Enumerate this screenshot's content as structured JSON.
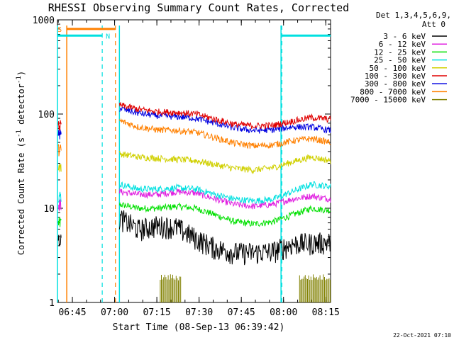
{
  "chart_data": {
    "type": "line",
    "title": "RHESSI Observing Summary Count Rates, Corrected",
    "xlabel": "Start Time (08-Sep-13 06:39:42)",
    "ylabel_main": "Corrected Count Rate (s",
    "ylabel_sup1": "-1",
    "ylabel_mid": " detector",
    "ylabel_sup2": "-1",
    "ylabel_end": ")",
    "timestamp": "22-Oct-2021 07:10",
    "y_scale": "log",
    "ylim": [
      1,
      1000
    ],
    "xlim_minutes": [
      0,
      97
    ],
    "x_ticks": [
      {
        "label": "06:45",
        "minutes": 5.3
      },
      {
        "label": "07:00",
        "minutes": 20.3
      },
      {
        "label": "07:15",
        "minutes": 35.3
      },
      {
        "label": "07:30",
        "minutes": 50.3
      },
      {
        "label": "07:45",
        "minutes": 65.3
      },
      {
        "label": "08:00",
        "minutes": 80.3
      },
      {
        "label": "08:15",
        "minutes": 95.3
      }
    ],
    "y_ticks": [
      {
        "label": "1",
        "value": 1
      },
      {
        "label": "10",
        "value": 10
      },
      {
        "label": "100",
        "value": 100
      },
      {
        "label": "1000",
        "value": 1000
      }
    ],
    "legend_header": [
      "Det 1,3,4,5,6,9,",
      "Att 0"
    ],
    "legend_position": "right",
    "flag_labels": {
      "saa": "S",
      "night": "N"
    },
    "series": [
      {
        "name": "3 - 6 keV",
        "color": "#000000",
        "values_first": 4.6,
        "values_main": [
          8.0,
          6.0,
          6.6,
          6.3,
          4.8,
          3.8,
          3.4,
          3.4,
          3.5,
          4.2,
          4.3,
          4.4
        ]
      },
      {
        "name": "6 - 12 keV",
        "color": "#e020e0",
        "values_first": 11.0,
        "values_main": [
          15.0,
          14.0,
          14.0,
          15.0,
          14.5,
          12.5,
          11.0,
          10.5,
          11.0,
          12.5,
          13.5,
          12.5
        ]
      },
      {
        "name": "12 - 25 keV",
        "color": "#00e000",
        "values_first": 7.0,
        "values_main": [
          11.0,
          10.0,
          10.0,
          10.5,
          10.0,
          8.5,
          7.2,
          6.8,
          7.2,
          8.5,
          10.0,
          9.5
        ]
      },
      {
        "name": "25 - 50 keV",
        "color": "#00e0e0",
        "values_first": 13.5,
        "values_main": [
          18.0,
          16.0,
          16.0,
          16.5,
          16.0,
          14.0,
          12.5,
          12.0,
          12.5,
          15.0,
          18.0,
          17.0
        ]
      },
      {
        "name": "50 - 100 keV",
        "color": "#d0d000",
        "values_first": 28.0,
        "values_main": [
          38.0,
          35.0,
          34.0,
          33.0,
          32.0,
          29.0,
          26.5,
          25.5,
          27.0,
          31.0,
          35.0,
          32.0
        ]
      },
      {
        "name": "100 - 300 keV",
        "color": "#e00000",
        "values_first": 75.0,
        "values_main": [
          125.0,
          112.0,
          106.0,
          104.0,
          100.0,
          88.0,
          78.0,
          75.0,
          76.0,
          84.0,
          92.0,
          88.0
        ]
      },
      {
        "name": "300 - 800 keV",
        "color": "#0000e0",
        "values_first": 60.0,
        "values_main": [
          115.0,
          102.0,
          96.0,
          94.0,
          90.0,
          80.0,
          71.0,
          67.0,
          68.0,
          73.0,
          73.0,
          67.0
        ]
      },
      {
        "name": "800 - 7000 keV",
        "color": "#ff8000",
        "values_first": 42.0,
        "values_main": [
          85.0,
          73.0,
          68.0,
          67.0,
          64.0,
          56.0,
          49.0,
          46.0,
          47.0,
          52.0,
          55.0,
          50.0
        ]
      },
      {
        "name": "7000 - 15000 keV",
        "color": "#808000",
        "values_first": 1.0,
        "values_main": [
          1.0,
          1.0,
          1.0,
          1.0,
          1.0,
          1.0,
          1.0,
          1.0,
          1.0,
          1.0,
          1.0,
          1.0
        ]
      }
    ],
    "main_segment_minutes": [
      22.0,
      97.0
    ],
    "first_segment_minutes": [
      0.3,
      1.3
    ],
    "top_band_segments": [
      {
        "series": "7000 - 15000 keV",
        "minutes": [
          36.5,
          44.0
        ],
        "value": 2.0
      },
      {
        "series": "7000 - 15000 keV",
        "minutes": [
          86.0,
          97.0
        ],
        "value": 2.0
      }
    ],
    "saa_interval_minutes": [
      3.3,
      20.6
    ],
    "saa_flag_level": 800,
    "night_intervals_minutes": [
      [
        0.0,
        15.9
      ],
      [
        79.7,
        97.0
      ]
    ],
    "night_flag_level": 680,
    "dashed_markers_minutes": [
      {
        "color": "#00e0e0",
        "minutes": 15.9
      },
      {
        "color": "#00e0e0",
        "minutes": 79.7
      },
      {
        "color": "#ff8000",
        "minutes": 20.6
      }
    ],
    "solid_markers_minutes": [
      {
        "color": "#00e0e0",
        "minutes": 0.0
      },
      {
        "color": "#ff8000",
        "minutes": 3.3
      },
      {
        "color": "#00e0e0",
        "minutes": 22.0
      },
      {
        "color": "#00e0e0",
        "minutes": 79.4
      }
    ]
  }
}
